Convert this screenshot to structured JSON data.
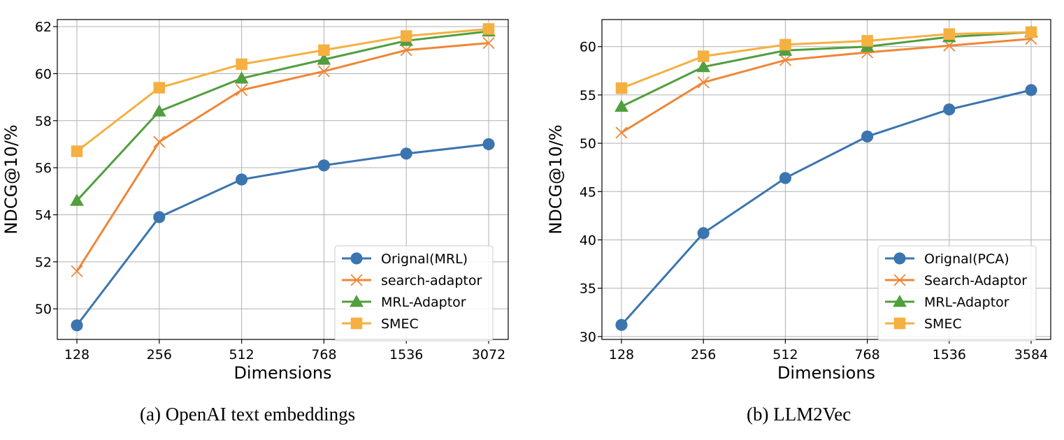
{
  "captions": [
    "(a) OpenAI text embeddings",
    "(b) LLM2Vec"
  ],
  "chart_data": [
    {
      "type": "line",
      "title": "",
      "xlabel": "Dimensions",
      "ylabel": "NDCG@10/%",
      "categories": [
        "128",
        "256",
        "512",
        "768",
        "1536",
        "3072"
      ],
      "ylim": [
        48.7,
        62.3
      ],
      "yticks": [
        50,
        52,
        54,
        56,
        58,
        60,
        62
      ],
      "grid": true,
      "legend": "lower-right",
      "series": [
        {
          "name": "Orignal(MRL)",
          "color": "#3b75af",
          "marker": "circle",
          "values": [
            49.3,
            53.9,
            55.5,
            56.1,
            56.6,
            57.0
          ]
        },
        {
          "name": "search-adaptor",
          "color": "#ef8636",
          "marker": "x",
          "values": [
            51.6,
            57.1,
            59.3,
            60.1,
            61.0,
            61.3
          ]
        },
        {
          "name": "MRL-Adaptor",
          "color": "#519e3e",
          "marker": "triangle",
          "values": [
            54.6,
            58.4,
            59.8,
            60.6,
            61.4,
            61.8
          ]
        },
        {
          "name": "SMEC",
          "color": "#f5b041",
          "marker": "square",
          "values": [
            56.7,
            59.4,
            60.4,
            61.0,
            61.6,
            61.9
          ]
        }
      ]
    },
    {
      "type": "line",
      "title": "",
      "xlabel": "Dimensions",
      "ylabel": "NDCG@10/%",
      "categories": [
        "128",
        "256",
        "512",
        "768",
        "1536",
        "3584"
      ],
      "ylim": [
        29.7,
        62.8
      ],
      "yticks": [
        30,
        35,
        40,
        45,
        50,
        55,
        60
      ],
      "grid": true,
      "legend": "lower-right",
      "series": [
        {
          "name": "Orignal(PCA)",
          "color": "#3b75af",
          "marker": "circle",
          "values": [
            31.2,
            40.7,
            46.4,
            50.7,
            53.5,
            55.5
          ]
        },
        {
          "name": "Search-Adaptor",
          "color": "#ef8636",
          "marker": "x",
          "values": [
            51.1,
            56.3,
            58.6,
            59.4,
            60.1,
            60.8
          ]
        },
        {
          "name": "MRL-Adaptor",
          "color": "#519e3e",
          "marker": "triangle",
          "values": [
            53.8,
            57.9,
            59.6,
            60.0,
            61.0,
            61.5
          ]
        },
        {
          "name": "SMEC",
          "color": "#f5b041",
          "marker": "square",
          "values": [
            55.7,
            59.0,
            60.2,
            60.6,
            61.3,
            61.5
          ]
        }
      ]
    }
  ]
}
